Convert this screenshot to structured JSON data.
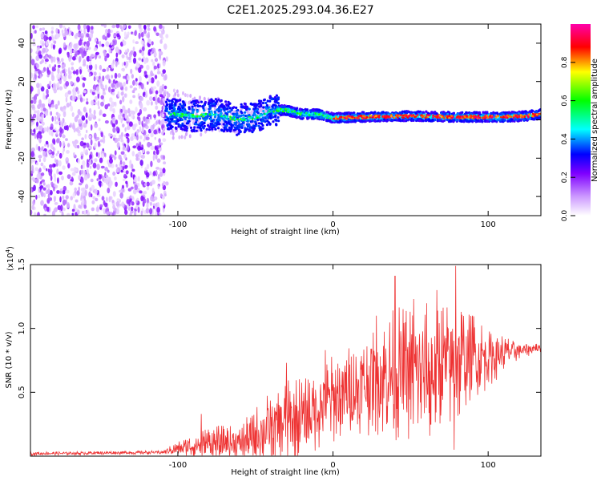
{
  "title": "C2E1.2025.293.04.36.E27",
  "chart_data": [
    {
      "type": "heatmap",
      "panel": "spectrogram",
      "xlabel": "Height of straight line (km)",
      "ylabel": "Frequency (Hz)",
      "xlim": [
        -195,
        134
      ],
      "ylim": [
        -50,
        50
      ],
      "xticks": [
        -100,
        0,
        100
      ],
      "xtick_labels": [
        "-100",
        "0",
        "100"
      ],
      "yticks": [
        -40,
        -20,
        0,
        20,
        40
      ],
      "ytick_labels": [
        "-40",
        "-20",
        "0",
        "20",
        "40"
      ],
      "regions": [
        {
          "name": "broadband scatter",
          "x_range": [
            -195,
            -107
          ],
          "freq_range": [
            -50,
            50
          ],
          "amplitude": [
            0.05,
            0.2
          ]
        },
        {
          "name": "transition band",
          "x_range": [
            -107,
            -35
          ],
          "freq_range": [
            -15,
            12
          ],
          "amplitude": [
            0.15,
            0.4
          ]
        },
        {
          "name": "narrow band",
          "x_range": [
            -35,
            134
          ],
          "freq_range": [
            -1,
            5
          ],
          "amplitude": [
            0.2,
            0.95
          ]
        }
      ],
      "ridge": [
        {
          "x": -105,
          "f": 3
        },
        {
          "x": -90,
          "f": 2
        },
        {
          "x": -75,
          "f": 3
        },
        {
          "x": -62,
          "f": 0
        },
        {
          "x": -50,
          "f": 1
        },
        {
          "x": -40,
          "f": 5
        },
        {
          "x": -30,
          "f": 5
        },
        {
          "x": -20,
          "f": 3
        },
        {
          "x": -10,
          "f": 3
        },
        {
          "x": 0,
          "f": 1
        },
        {
          "x": 20,
          "f": 1.5
        },
        {
          "x": 50,
          "f": 2
        },
        {
          "x": 80,
          "f": 1.5
        },
        {
          "x": 110,
          "f": 1.5
        },
        {
          "x": 125,
          "f": 2
        },
        {
          "x": 134,
          "f": 3
        }
      ],
      "colorbar": {
        "label": "Normalized spectral amplitude",
        "range": [
          0,
          1
        ],
        "ticks": [
          0.0,
          0.2,
          0.4,
          0.6,
          0.8
        ],
        "tick_labels": [
          "0.0",
          "0.2",
          "0.4",
          "0.6",
          "0.8"
        ],
        "colors": [
          "#ffffff",
          "#cc99ff",
          "#7f00ff",
          "#0000ff",
          "#00ffff",
          "#00ff00",
          "#ffff00",
          "#ff0000",
          "#ff00aa"
        ]
      }
    },
    {
      "type": "line",
      "panel": "snr",
      "xlabel": "Height of straight line (km)",
      "ylabel": "SNR (10 * v/v)",
      "scale_label": "(x10",
      "scale_exponent": "4",
      "scale_close": ")",
      "xlim": [
        -195,
        134
      ],
      "ylim": [
        0,
        1.5
      ],
      "xticks": [
        -100,
        0,
        100
      ],
      "xtick_labels": [
        "-100",
        "0",
        "100"
      ],
      "yticks": [
        0.5,
        1.0,
        1.5
      ],
      "ytick_labels": [
        "0.5",
        "1.0",
        "1.5"
      ],
      "color": "#ee3333",
      "envelope": [
        {
          "x": -195,
          "base": 0.02,
          "amp": 0.02
        },
        {
          "x": -110,
          "base": 0.03,
          "amp": 0.02
        },
        {
          "x": -100,
          "base": 0.06,
          "amp": 0.08
        },
        {
          "x": -80,
          "base": 0.1,
          "amp": 0.2
        },
        {
          "x": -60,
          "base": 0.1,
          "amp": 0.2
        },
        {
          "x": -40,
          "base": 0.22,
          "amp": 0.45
        },
        {
          "x": -20,
          "base": 0.3,
          "amp": 0.5
        },
        {
          "x": 0,
          "base": 0.45,
          "amp": 0.5
        },
        {
          "x": 20,
          "base": 0.55,
          "amp": 0.55
        },
        {
          "x": 40,
          "base": 0.65,
          "amp": 0.75
        },
        {
          "x": 60,
          "base": 0.65,
          "amp": 0.8
        },
        {
          "x": 80,
          "base": 0.75,
          "amp": 0.75
        },
        {
          "x": 100,
          "base": 0.78,
          "amp": 0.35
        },
        {
          "x": 120,
          "base": 0.83,
          "amp": 0.1
        },
        {
          "x": 134,
          "base": 0.85,
          "amp": 0.05
        }
      ],
      "peaks": [
        {
          "x": -85,
          "y": 0.33
        },
        {
          "x": -30,
          "y": 0.73
        },
        {
          "x": -5,
          "y": 0.83
        },
        {
          "x": 28,
          "y": 1.1
        },
        {
          "x": 40,
          "y": 1.41
        },
        {
          "x": 52,
          "y": 1.23
        },
        {
          "x": 67,
          "y": 1.3
        },
        {
          "x": 79,
          "y": 1.49
        },
        {
          "x": 90,
          "y": 1.1
        }
      ],
      "dips": [
        {
          "x": 78,
          "y": 0.05
        },
        {
          "x": 63,
          "y": 0.25
        }
      ]
    }
  ]
}
